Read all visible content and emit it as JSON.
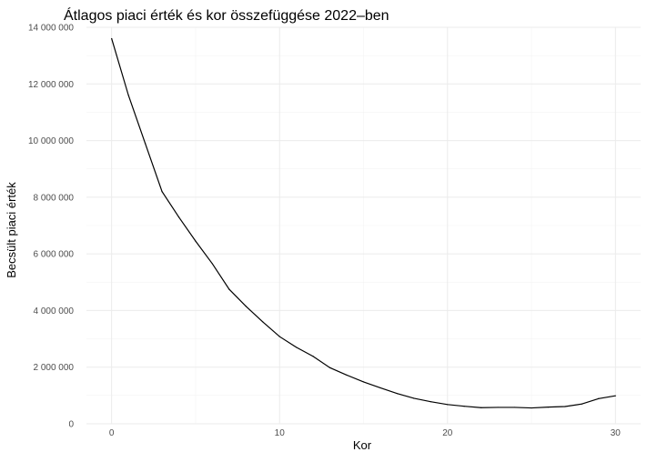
{
  "chart_data": {
    "type": "line",
    "title": "Átlagos piaci érték és kor összefüggése 2022–ben",
    "xlabel": "Kor",
    "ylabel": "Becsült piaci érték",
    "xlim": [
      -1.5,
      31.5
    ],
    "ylim": [
      0,
      14000000
    ],
    "x_ticks": [
      0,
      10,
      20,
      30
    ],
    "x_tick_labels": [
      "0",
      "10",
      "20",
      "30"
    ],
    "y_ticks": [
      0,
      2000000,
      4000000,
      6000000,
      8000000,
      10000000,
      12000000,
      14000000
    ],
    "y_tick_labels": [
      "0",
      "2 000 000",
      "4 000 000",
      "6 000 000",
      "8 000 000",
      "10 000 000",
      "12 000 000",
      "14 000 000"
    ],
    "grid": true,
    "line_color": "#000000",
    "series": [
      {
        "x": [
          0,
          1,
          2,
          3,
          4,
          5,
          6,
          7,
          8,
          9,
          10,
          11,
          12,
          13,
          14,
          15,
          16,
          17,
          18,
          19,
          20,
          21,
          22,
          23,
          24,
          25,
          26,
          27,
          28,
          29,
          30
        ],
        "values": [
          13600000,
          11600000,
          9900000,
          8200000,
          7300000,
          6450000,
          5650000,
          4750000,
          4150000,
          3600000,
          3080000,
          2700000,
          2380000,
          1980000,
          1720000,
          1480000,
          1270000,
          1070000,
          900000,
          780000,
          680000,
          620000,
          570000,
          580000,
          580000,
          560000,
          590000,
          610000,
          700000,
          890000,
          990000
        ]
      }
    ]
  }
}
